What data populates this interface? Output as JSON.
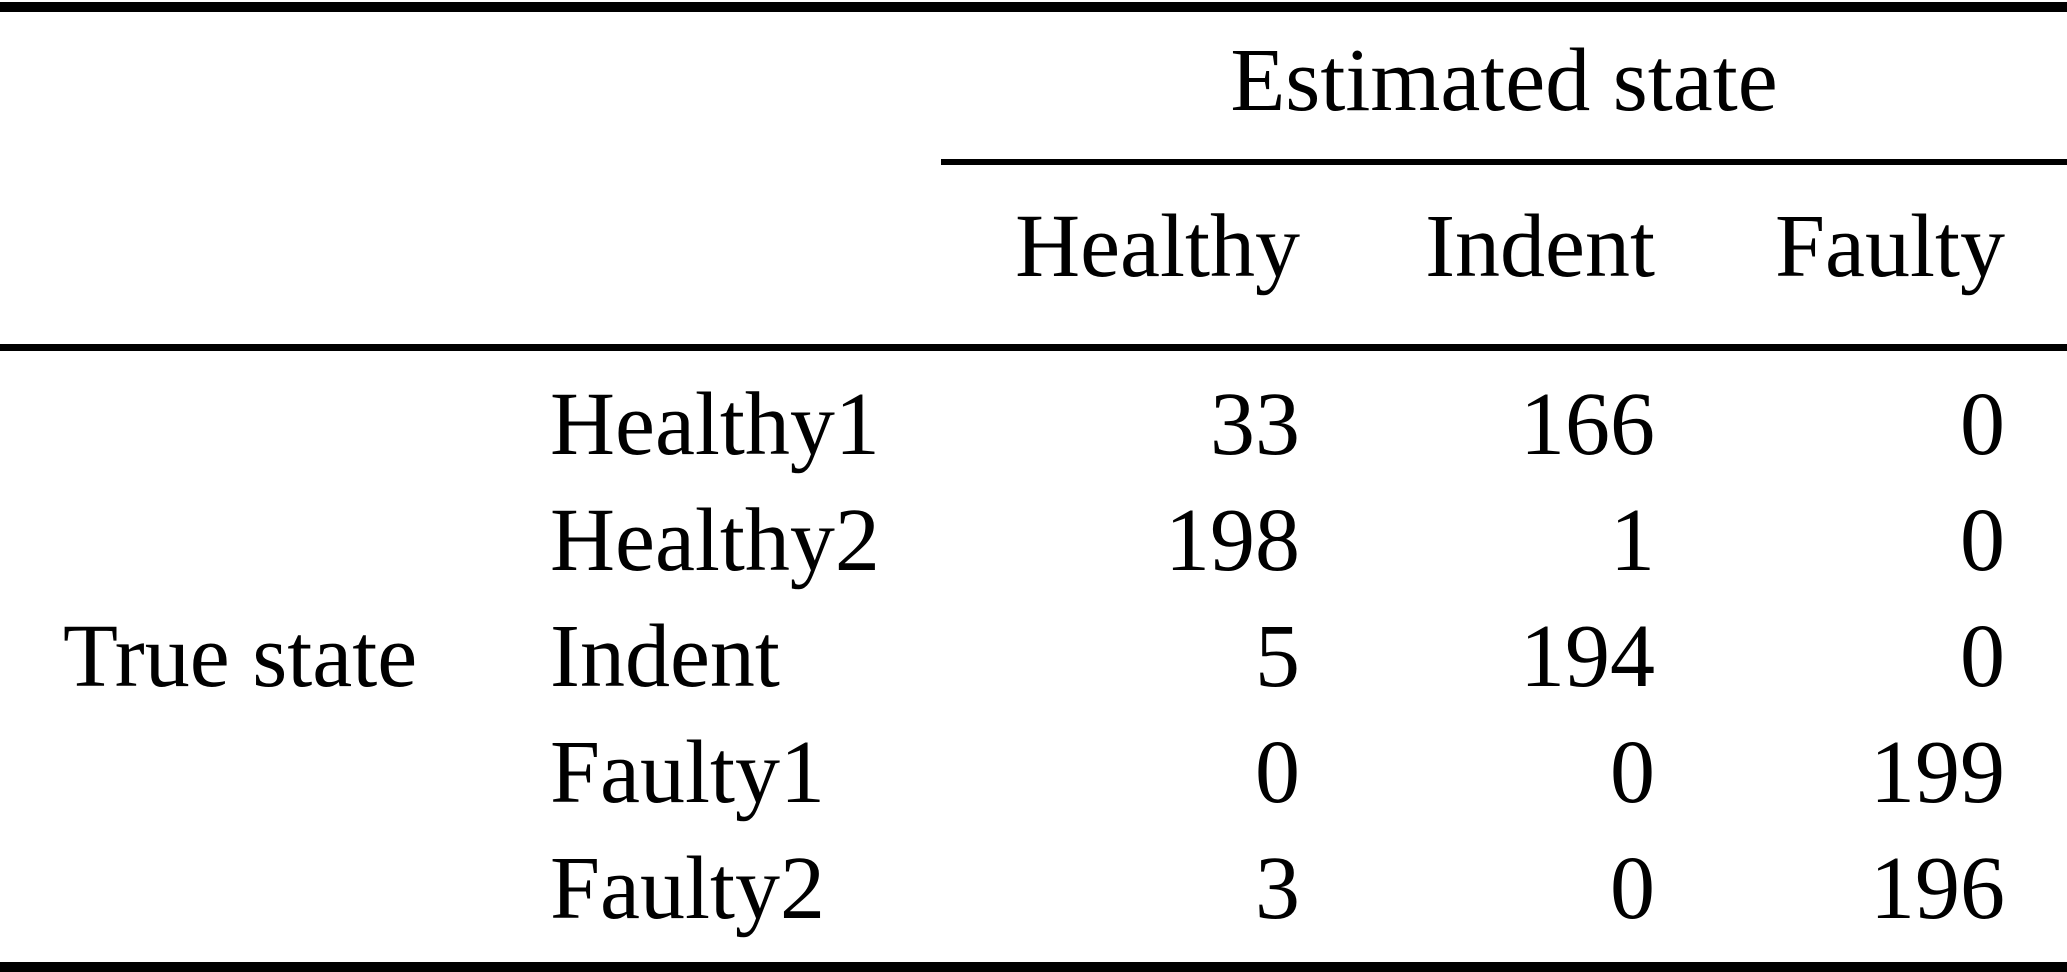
{
  "table": {
    "col_group_title": "Estimated state",
    "row_group_title": "True state",
    "columns": [
      "Healthy",
      "Indent",
      "Faulty"
    ],
    "rows": [
      {
        "label": "Healthy1",
        "values": [
          "33",
          "166",
          "0"
        ]
      },
      {
        "label": "Healthy2",
        "values": [
          "198",
          "1",
          "0"
        ]
      },
      {
        "label": "Indent",
        "values": [
          "5",
          "194",
          "0"
        ]
      },
      {
        "label": "Faulty1",
        "values": [
          "0",
          "0",
          "199"
        ]
      },
      {
        "label": "Faulty2",
        "values": [
          "3",
          "0",
          "196"
        ]
      }
    ]
  },
  "colors": {
    "text": "#000000",
    "rule": "#000000",
    "background": "#ffffff"
  }
}
